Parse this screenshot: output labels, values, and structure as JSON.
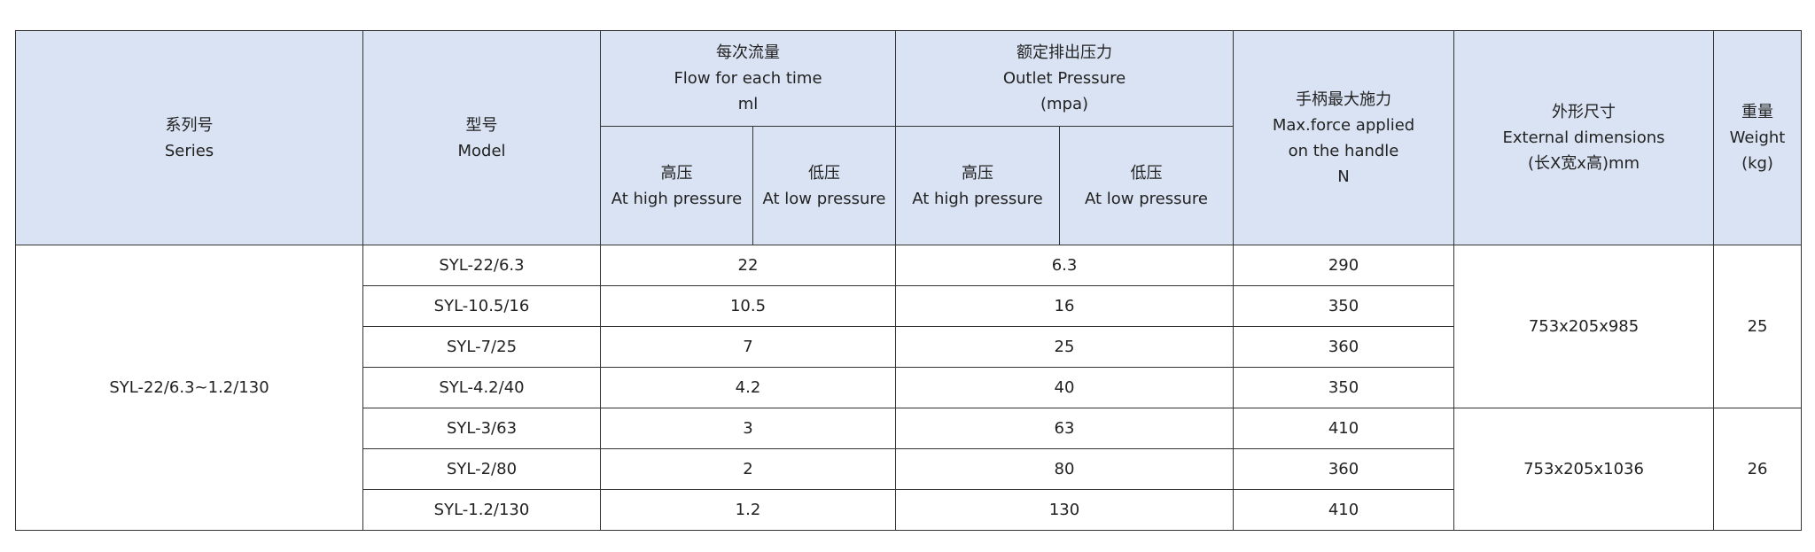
{
  "header": {
    "series": {
      "zh": "系列号",
      "en": "Series"
    },
    "model": {
      "zh": "型号",
      "en": "Model"
    },
    "flow": {
      "zh": "每次流量",
      "en": "Flow for each time",
      "unit": "ml"
    },
    "pressure": {
      "zh": "额定排出压力",
      "en": "Outlet Pressure",
      "unit": "(mpa)"
    },
    "high": {
      "zh": "高压",
      "en": "At high pressure"
    },
    "low": {
      "zh": "低压",
      "en": "At low pressure"
    },
    "force": {
      "zh": "手柄最大施力",
      "en1": "Max.force applied",
      "en2": "on the handle",
      "unit": "N"
    },
    "dims": {
      "zh": "外形尺寸",
      "en": "External dimensions",
      "unit": "(长X宽x高)mm"
    },
    "weight": {
      "zh": "重量",
      "en": "Weight",
      "unit": "(kg)"
    }
  },
  "series_name": "SYL-22/6.3~1.2/130",
  "rows": [
    {
      "model": "SYL-22/6.3",
      "flow": "22",
      "pressure": "6.3",
      "force": "290"
    },
    {
      "model": "SYL-10.5/16",
      "flow": "10.5",
      "pressure": "16",
      "force": "350"
    },
    {
      "model": "SYL-7/25",
      "flow": "7",
      "pressure": "25",
      "force": "360"
    },
    {
      "model": "SYL-4.2/40",
      "flow": "4.2",
      "pressure": "40",
      "force": "350"
    },
    {
      "model": "SYL-3/63",
      "flow": "3",
      "pressure": "63",
      "force": "410"
    },
    {
      "model": "SYL-2/80",
      "flow": "2",
      "pressure": "80",
      "force": "360"
    },
    {
      "model": "SYL-1.2/130",
      "flow": "1.2",
      "pressure": "130",
      "force": "410"
    }
  ],
  "groups": [
    {
      "dims": "753x205x985",
      "weight": "25"
    },
    {
      "dims": "753x205x1036",
      "weight": "26"
    }
  ]
}
